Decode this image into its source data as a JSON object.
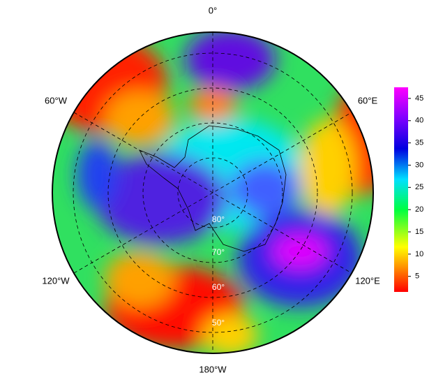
{
  "map": {
    "meridian_labels": [
      "0°",
      "60°E",
      "120°E",
      "180°W",
      "120°W",
      "60°W"
    ],
    "latitude_labels": [
      "80°",
      "70°",
      "60°",
      "50°"
    ]
  },
  "colorbar": {
    "range": [
      1.5,
      47.5
    ],
    "ticks": [
      5,
      10,
      15,
      20,
      25,
      30,
      35,
      40,
      45
    ]
  }
}
